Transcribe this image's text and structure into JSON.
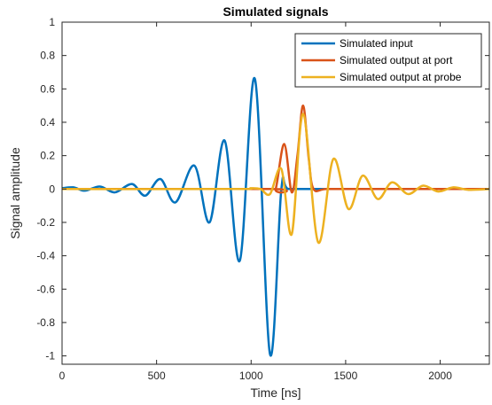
{
  "chart_data": {
    "type": "line",
    "title": "Simulated signals",
    "xlabel": "Time [ns]",
    "ylabel": "Signal amplitude",
    "xlim": [
      0,
      2260
    ],
    "ylim": [
      -1.05,
      1
    ],
    "xticks": [
      0,
      500,
      1000,
      1500,
      2000
    ],
    "yticks": [
      1,
      0.8,
      0.6,
      0.4,
      0.2,
      0,
      -0.2,
      -0.4,
      -0.6,
      -0.8,
      -1
    ],
    "xtick_labels": [
      "0",
      "500",
      "1000",
      "1500",
      "2000"
    ],
    "ytick_labels": [
      "1",
      "0.8",
      "0.6",
      "0.4",
      "0.2",
      "0",
      "-0.2",
      "-0.4",
      "-0.6",
      "-0.8",
      "-1"
    ],
    "grid": false,
    "legend_position": "top-right",
    "series": [
      {
        "name": "Simulated input",
        "color": "#0072BD",
        "points": [
          [
            0,
            0.005
          ],
          [
            60,
            0.01
          ],
          [
            120,
            -0.01
          ],
          [
            200,
            0.015
          ],
          [
            280,
            -0.02
          ],
          [
            370,
            0.03
          ],
          [
            440,
            -0.04
          ],
          [
            520,
            0.06
          ],
          [
            600,
            -0.08
          ],
          [
            700,
            0.14
          ],
          [
            780,
            -0.2
          ],
          [
            860,
            0.29
          ],
          [
            940,
            -0.43
          ],
          [
            1020,
            0.66
          ],
          [
            1100,
            -0.99
          ],
          [
            1160,
            0.0
          ],
          [
            1200,
            0.0
          ],
          [
            1400,
            0.0
          ],
          [
            1600,
            0.0
          ],
          [
            1800,
            0.0
          ],
          [
            2000,
            0.0
          ],
          [
            2260,
            0.0
          ]
        ]
      },
      {
        "name": "Simulated output at port",
        "color": "#D95319",
        "points": [
          [
            0,
            0.0
          ],
          [
            1100,
            0.0
          ],
          [
            1130,
            0.0
          ],
          [
            1175,
            0.27
          ],
          [
            1215,
            -0.02
          ],
          [
            1245,
            0.2
          ],
          [
            1275,
            0.5
          ],
          [
            1305,
            0.18
          ],
          [
            1330,
            0.0
          ],
          [
            1400,
            0.0
          ],
          [
            1600,
            0.0
          ],
          [
            1800,
            0.0
          ],
          [
            2000,
            0.0
          ],
          [
            2260,
            0.0
          ]
        ]
      },
      {
        "name": "Simulated output at probe",
        "color": "#EDB120",
        "points": [
          [
            0,
            0.0
          ],
          [
            900,
            0.0
          ],
          [
            1000,
            0.005
          ],
          [
            1050,
            0.0
          ],
          [
            1100,
            -0.03
          ],
          [
            1160,
            0.12
          ],
          [
            1215,
            -0.27
          ],
          [
            1275,
            0.45
          ],
          [
            1355,
            -0.32
          ],
          [
            1435,
            0.18
          ],
          [
            1515,
            -0.12
          ],
          [
            1590,
            0.08
          ],
          [
            1670,
            -0.06
          ],
          [
            1745,
            0.04
          ],
          [
            1830,
            -0.03
          ],
          [
            1910,
            0.02
          ],
          [
            1990,
            -0.015
          ],
          [
            2070,
            0.01
          ],
          [
            2150,
            -0.005
          ],
          [
            2260,
            0.0
          ]
        ]
      }
    ]
  }
}
